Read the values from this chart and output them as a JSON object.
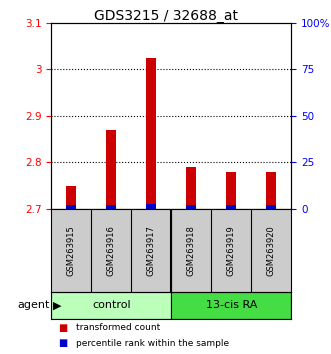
{
  "title": "GDS3215 / 32688_at",
  "samples": [
    "GSM263915",
    "GSM263916",
    "GSM263917",
    "GSM263918",
    "GSM263919",
    "GSM263920"
  ],
  "red_values": [
    2.75,
    2.87,
    3.025,
    2.79,
    2.78,
    2.78
  ],
  "blue_values": [
    0.008,
    0.008,
    0.01,
    0.008,
    0.008,
    0.008
  ],
  "ylim": [
    2.7,
    3.1
  ],
  "yticks_left": [
    2.7,
    2.8,
    2.9,
    3.0,
    3.1
  ],
  "yticks_left_labels": [
    "2.7",
    "2.8",
    "2.9",
    "3",
    "3.1"
  ],
  "yticks_right_pos": [
    2.7,
    2.8,
    2.9,
    3.0,
    3.1
  ],
  "yticks_right_labels": [
    "0",
    "25",
    "50",
    "75",
    "100%"
  ],
  "group_bg_color": "#cccccc",
  "red_color": "#cc0000",
  "blue_color": "#0000cc",
  "control_color": "#bbffbb",
  "ra_color": "#44dd44",
  "legend_red": "transformed count",
  "legend_blue": "percentile rank within the sample",
  "title_fontsize": 10,
  "tick_fontsize": 7.5,
  "sample_fontsize": 6.0,
  "group_fontsize": 8,
  "legend_fontsize": 6.5,
  "agent_fontsize": 8
}
